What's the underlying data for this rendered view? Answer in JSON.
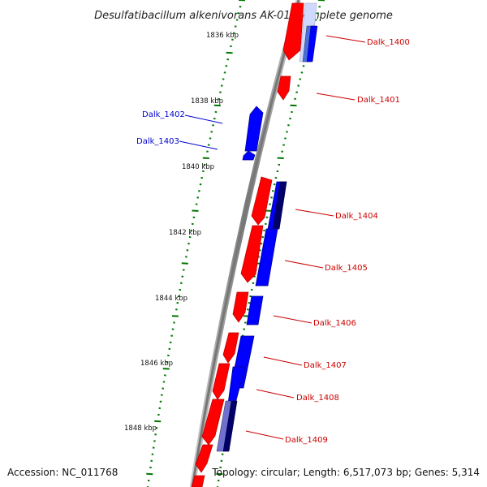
{
  "title": "Desulfatibacillum alkenivorans AK-01, complete genome",
  "accession": "Accession: NC_011768",
  "topology": "Topology: circular; Length: 6,517,073 bp; Genes: 5,314",
  "colors": {
    "forward_strand": "#ff0000",
    "reverse_strand": "#0000ff",
    "label_forward": "#cc0000",
    "label_reverse": "#0000cc",
    "tick": "#007700",
    "backbone": "#888888"
  },
  "scale_labels": [
    "1836 kbp",
    "1838 kbp",
    "1840 kbp",
    "1842 kbp",
    "1844 kbp",
    "1846 kbp",
    "1848 kbp"
  ],
  "genes": [
    {
      "label": "Dalk_1400",
      "strand": "+"
    },
    {
      "label": "Dalk_1401",
      "strand": "+"
    },
    {
      "label": "Dalk_1402",
      "strand": "-"
    },
    {
      "label": "Dalk_1403",
      "strand": "-"
    },
    {
      "label": "Dalk_1404",
      "strand": "+"
    },
    {
      "label": "Dalk_1405",
      "strand": "+"
    },
    {
      "label": "Dalk_1406",
      "strand": "+"
    },
    {
      "label": "Dalk_1407",
      "strand": "+"
    },
    {
      "label": "Dalk_1408",
      "strand": "+"
    },
    {
      "label": "Dalk_1409",
      "strand": "+"
    }
  ]
}
